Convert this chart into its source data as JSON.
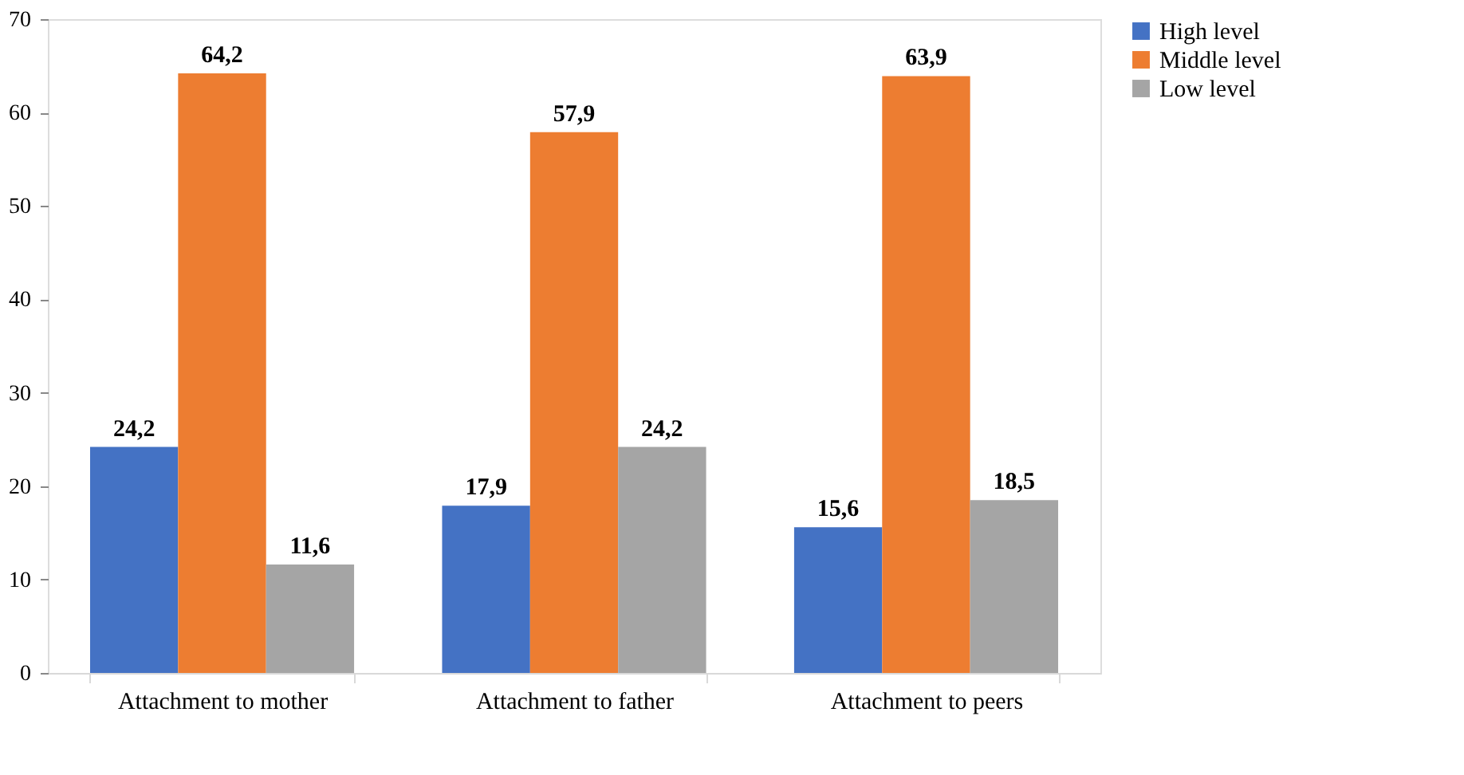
{
  "chart_data": {
    "type": "bar",
    "categories": [
      "Attachment to mother",
      "Attachment to father",
      "Attachment to peers"
    ],
    "series": [
      {
        "name": "High level",
        "color": "#4472c4",
        "values": [
          24.2,
          17.9,
          15.6
        ],
        "value_labels": [
          "24,2",
          "17,9",
          "15,6"
        ]
      },
      {
        "name": "Middle level",
        "color": "#ed7d31",
        "values": [
          64.2,
          57.9,
          63.9
        ],
        "value_labels": [
          "64,2",
          "57,9",
          "63,9"
        ]
      },
      {
        "name": "Low level",
        "color": "#a5a5a5",
        "values": [
          11.6,
          24.2,
          18.5
        ],
        "value_labels": [
          "11,6",
          "24,2",
          "18,5"
        ]
      }
    ],
    "ylim": [
      0,
      70
    ],
    "yticks": [
      0,
      10,
      20,
      30,
      40,
      50,
      60,
      70
    ],
    "grid": false,
    "legend": "right"
  }
}
